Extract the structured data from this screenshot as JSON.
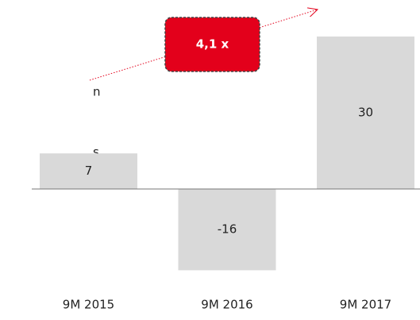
{
  "chart_data": {
    "type": "bar",
    "categories": [
      "9M 2015",
      "9M 2016",
      "9M 2017"
    ],
    "values": [
      7,
      -16,
      30
    ],
    "color": "#d9d9d9",
    "annotation": "4,1 x",
    "annotation_color": "#e3001b",
    "left_fragments": [
      "n",
      "s"
    ]
  }
}
